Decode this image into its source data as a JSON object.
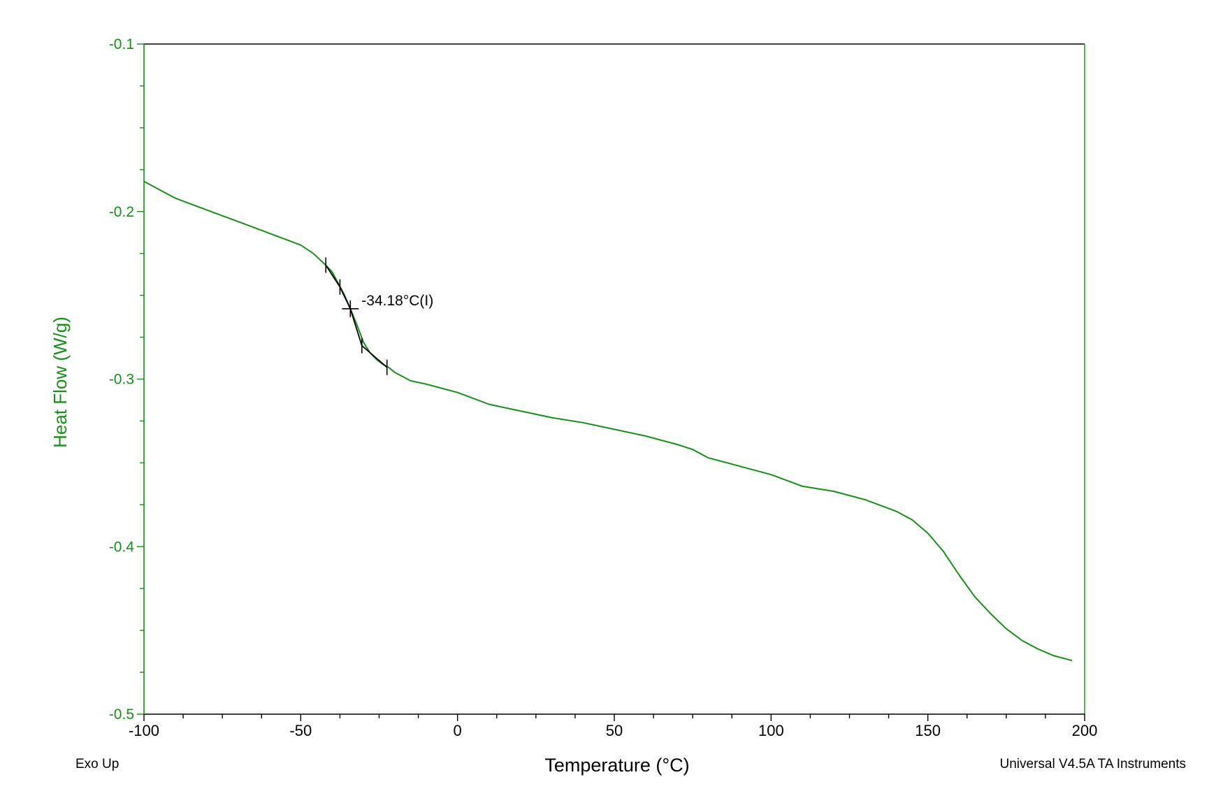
{
  "chart_data": {
    "type": "line",
    "xlabel": "Temperature (°C)",
    "ylabel": "Heat Flow (W/g)",
    "xlim": [
      -100,
      200
    ],
    "ylim": [
      -0.5,
      -0.1
    ],
    "xticks": [
      -100,
      -50,
      0,
      50,
      100,
      150,
      200
    ],
    "yticks": [
      -0.1,
      -0.2,
      -0.3,
      -0.4,
      -0.5
    ],
    "xtick_labels": [
      "-100",
      "-50",
      "0",
      "50",
      "100",
      "150",
      "200"
    ],
    "ytick_labels": [
      "-0.1",
      "-0.2",
      "-0.3",
      "-0.4",
      "-0.5"
    ],
    "grid": false,
    "series": [
      {
        "color": "#1a8c1a",
        "x": [
          -100,
          -90,
          -80,
          -70,
          -60,
          -50,
          -46,
          -42,
          -40,
          -38,
          -36,
          -34.18,
          -32,
          -30,
          -28,
          -26,
          -24,
          -22,
          -20,
          -15,
          -10,
          0,
          10,
          20,
          30,
          40,
          50,
          60,
          70,
          75,
          80,
          90,
          100,
          110,
          120,
          130,
          140,
          145,
          150,
          155,
          160,
          165,
          170,
          175,
          180,
          185,
          190,
          196
        ],
        "y": [
          -0.182,
          -0.192,
          -0.199,
          -0.206,
          -0.213,
          -0.22,
          -0.225,
          -0.232,
          -0.236,
          -0.243,
          -0.25,
          -0.258,
          -0.268,
          -0.278,
          -0.284,
          -0.288,
          -0.291,
          -0.293,
          -0.296,
          -0.301,
          -0.303,
          -0.308,
          -0.315,
          -0.319,
          -0.323,
          -0.326,
          -0.33,
          -0.334,
          -0.339,
          -0.342,
          -0.347,
          -0.352,
          -0.357,
          -0.364,
          -0.367,
          -0.372,
          -0.379,
          -0.384,
          -0.392,
          -0.403,
          -0.417,
          -0.43,
          -0.44,
          -0.449,
          -0.456,
          -0.461,
          -0.465,
          -0.468
        ]
      }
    ],
    "glass_transition": {
      "label": "-34.18°C(I)",
      "x": -34.18,
      "y": -0.258,
      "analysis_markers": [
        {
          "x": -42,
          "y": -0.232
        },
        {
          "x": -37.5,
          "y": -0.245
        },
        {
          "x": -30.5,
          "y": -0.28
        },
        {
          "x": -22.5,
          "y": -0.293
        }
      ],
      "fit_color": "#000000"
    },
    "footer_left": "Exo Up",
    "footer_right": "Universal V4.5A TA Instruments",
    "axis_color": "#1a8c1a",
    "text_color": "#000000"
  }
}
